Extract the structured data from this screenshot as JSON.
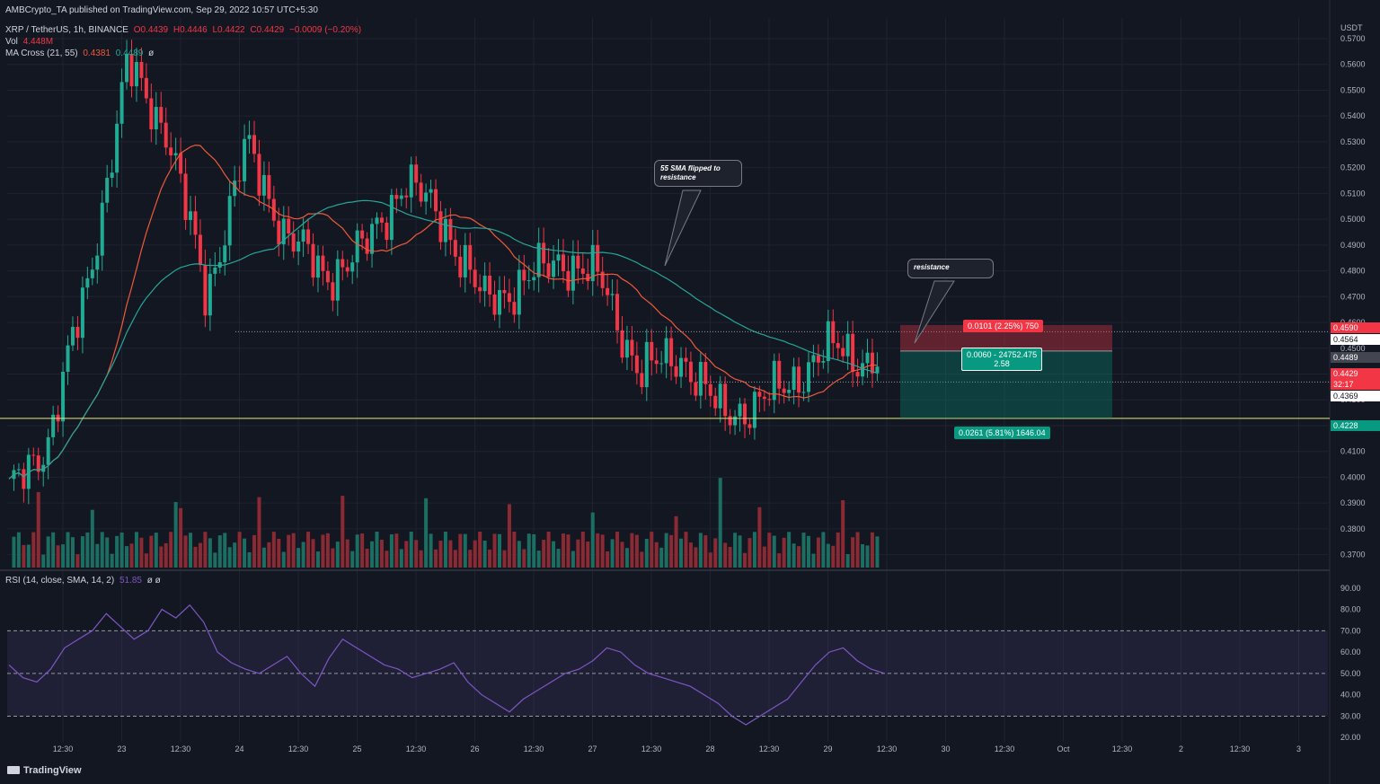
{
  "header": {
    "published": "AMBCrypto_TA published on TradingView.com, Sep 29, 2022 10:57 UTC+5:30",
    "symbol": "XRP / TetherUS, 1h, BINANCE",
    "ohlc": {
      "o": "O0.4439",
      "h": "H0.4446",
      "l": "L0.4422",
      "c": "C0.4429",
      "chg": "−0.0009 (−0.20%)"
    },
    "vol_label": "Vol",
    "vol_value": "4.448M",
    "ma_label": "MA Cross (21, 55)",
    "ma_fast": "0.4381",
    "ma_slow": "0.4489",
    "ma_icon": "ø",
    "rsi_label": "RSI (14, close, SMA, 14, 2)",
    "rsi_value": "51.85",
    "rsi_icons": "ø ø"
  },
  "watermark": "TradingView",
  "callouts": {
    "sma": "55 SMA flipped to resistance",
    "resistance": "resistance"
  },
  "position_tool": {
    "stop_label": "0.0101 (2.25%) 750",
    "entry_label": "0.0060 - 24752.475",
    "rr_label": "2.58",
    "target_label": "0.0261 (5.81%) 1646.04"
  },
  "price_labels": {
    "stop": "0.4590",
    "level_high": "0.4564",
    "ma_slow": "0.4489",
    "last": "0.4429",
    "countdown": "32:17",
    "level_low": "0.4369",
    "target": "0.4228"
  },
  "colors": {
    "bg": "#131722",
    "up": "#22ab94",
    "down": "#f23645",
    "ma_fast": "#f0593a",
    "ma_slow": "#26a69a",
    "rsi": "#7e57c2",
    "support": "#e8e87a"
  },
  "chart_data": [
    {
      "type": "candlestick",
      "title": "XRP / TetherUS, 1h, BINANCE",
      "y_axis_unit": "USDT",
      "ylim": [
        0.365,
        0.578
      ],
      "y_ticks": [
        "0.5700",
        "0.5600",
        "0.5500",
        "0.5400",
        "0.5300",
        "0.5200",
        "0.5100",
        "0.5000",
        "0.4900",
        "0.4800",
        "0.4700",
        "0.4600",
        "0.4500",
        "0.4400",
        "0.4300",
        "0.4200",
        "0.4100",
        "0.4000",
        "0.3900",
        "0.3800",
        "0.3700"
      ],
      "x_ticks": [
        "12:30",
        "23",
        "12:30",
        "24",
        "12:30",
        "25",
        "12:30",
        "26",
        "12:30",
        "27",
        "12:30",
        "28",
        "12:30",
        "29",
        "12:30",
        "30",
        "12:30",
        "Oct",
        "12:30",
        "2",
        "12:30",
        "3"
      ],
      "grid": true,
      "key_points": [
        {
          "t": "Sep 22 early",
          "price": 0.393
        },
        {
          "t": "Sep 22 12:30",
          "price": 0.415
        },
        {
          "t": "Sep 23 06:00",
          "price": 0.475
        },
        {
          "t": "Sep 23 11:00",
          "price": 0.559
        },
        {
          "t": "Sep 23 14:00",
          "price": 0.535
        },
        {
          "t": "Sep 24 00:00",
          "price": 0.47
        },
        {
          "t": "Sep 24 01:00",
          "price": 0.528
        },
        {
          "t": "Sep 24 12:00",
          "price": 0.495
        },
        {
          "t": "Sep 25 00:00",
          "price": 0.478
        },
        {
          "t": "Sep 25 12:00",
          "price": 0.488
        },
        {
          "t": "Sep 25 20:00",
          "price": 0.515
        },
        {
          "t": "Sep 26 06:00",
          "price": 0.5
        },
        {
          "t": "Sep 26 16:00",
          "price": 0.468
        },
        {
          "t": "Sep 27 06:00",
          "price": 0.475
        },
        {
          "t": "Sep 27 14:00",
          "price": 0.485
        },
        {
          "t": "Sep 27 22:00",
          "price": 0.476
        },
        {
          "t": "Sep 28 01:00",
          "price": 0.44
        },
        {
          "t": "Sep 28 06:00",
          "price": 0.448
        },
        {
          "t": "Sep 28 10:00",
          "price": 0.425
        },
        {
          "t": "Sep 28 20:00",
          "price": 0.428
        },
        {
          "t": "Sep 29 03:00",
          "price": 0.44
        },
        {
          "t": "Sep 29 06:00",
          "price": 0.451
        },
        {
          "t": "Sep 29 10:00",
          "price": 0.4429
        }
      ],
      "horizontal_levels": [
        0.4564,
        0.4369,
        0.4228
      ],
      "series": [
        {
          "name": "MA 21",
          "last": 0.4381
        },
        {
          "name": "MA 55",
          "last": 0.4489
        }
      ],
      "position": {
        "entry": 0.4489,
        "stop": 0.459,
        "target": 0.4228
      }
    },
    {
      "type": "line",
      "title": "RSI (14, close, SMA, 14, 2)",
      "ylim": [
        18,
        92
      ],
      "y_ticks": [
        "90.00",
        "80.00",
        "70.00",
        "60.00",
        "50.00",
        "40.00",
        "30.00",
        "20.00"
      ],
      "bands": [
        30,
        50,
        70
      ],
      "values": [
        54,
        48,
        46,
        52,
        62,
        66,
        70,
        78,
        72,
        66,
        70,
        80,
        76,
        82,
        74,
        60,
        55,
        52,
        50,
        54,
        58,
        50,
        44,
        57,
        66,
        62,
        58,
        54,
        52,
        48,
        50,
        52,
        55,
        46,
        40,
        36,
        32,
        38,
        42,
        46,
        50,
        52,
        56,
        62,
        60,
        54,
        50,
        48,
        46,
        44,
        40,
        36,
        30,
        26,
        30,
        34,
        38,
        46,
        54,
        60,
        62,
        56,
        52,
        50
      ],
      "last": 51.85
    }
  ]
}
